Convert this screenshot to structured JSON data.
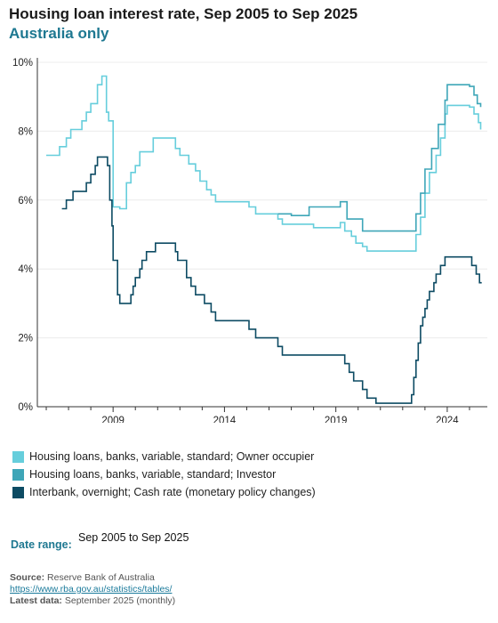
{
  "title": "Housing loan interest rate, Sep 2005 to Sep 2025",
  "subtitle": "Australia only",
  "colors": {
    "subtitle": "#1e7891",
    "owner_occupier": "#66cedc",
    "investor": "#3ea6b8",
    "cash_rate": "#0d4b63"
  },
  "legend": [
    {
      "label": "Housing loans, banks, variable, standard; Owner occupier",
      "color": "#66cedc"
    },
    {
      "label": "Housing loans, banks, variable, standard; Investor",
      "color": "#3ea6b8"
    },
    {
      "label": "Interbank, overnight; Cash rate (monetary policy changes)",
      "color": "#0d4b63"
    }
  ],
  "date_range": {
    "label": "Date range:",
    "value": "Sep 2005 to Sep 2025"
  },
  "footer": {
    "source_label": "Source:",
    "source_value": "Reserve Bank of Australia",
    "url": "https://www.rba.gov.au/statistics/tables/",
    "latest_label": "Latest data:",
    "latest_value": "September 2025 (monthly)"
  },
  "chart_data": {
    "type": "line",
    "ylim": [
      0,
      10
    ],
    "xlim": [
      2005.6,
      2025.8
    ],
    "y_ticks": [
      0,
      2,
      4,
      6,
      8,
      10
    ],
    "y_tick_labels": [
      "0%",
      "2%",
      "4%",
      "6%",
      "8%",
      "10%"
    ],
    "x_ticks": [
      2009,
      2014,
      2019,
      2024
    ],
    "x_tick_labels": [
      "2009",
      "2014",
      "2019",
      "2024"
    ],
    "grid": true,
    "series": [
      {
        "name": "Housing loans, banks, variable, standard; Owner occupier",
        "color": "#66cedc",
        "points": [
          [
            2006.0,
            7.3
          ],
          [
            2006.6,
            7.55
          ],
          [
            2006.9,
            7.8
          ],
          [
            2007.1,
            8.05
          ],
          [
            2007.6,
            8.3
          ],
          [
            2007.8,
            8.55
          ],
          [
            2008.0,
            8.8
          ],
          [
            2008.3,
            9.35
          ],
          [
            2008.5,
            9.6
          ],
          [
            2008.7,
            8.55
          ],
          [
            2008.8,
            8.3
          ],
          [
            2009.0,
            5.8
          ],
          [
            2009.3,
            5.75
          ],
          [
            2009.6,
            6.5
          ],
          [
            2009.8,
            6.8
          ],
          [
            2010.0,
            7.0
          ],
          [
            2010.2,
            7.4
          ],
          [
            2010.8,
            7.8
          ],
          [
            2011.8,
            7.5
          ],
          [
            2012.0,
            7.3
          ],
          [
            2012.4,
            7.05
          ],
          [
            2012.7,
            6.85
          ],
          [
            2012.9,
            6.55
          ],
          [
            2013.2,
            6.3
          ],
          [
            2013.4,
            6.15
          ],
          [
            2013.6,
            5.95
          ],
          [
            2015.1,
            5.8
          ],
          [
            2015.4,
            5.6
          ],
          [
            2016.4,
            5.45
          ],
          [
            2016.6,
            5.3
          ],
          [
            2018.0,
            5.2
          ],
          [
            2019.2,
            5.35
          ],
          [
            2019.4,
            5.1
          ],
          [
            2019.7,
            4.95
          ],
          [
            2019.9,
            4.75
          ],
          [
            2020.2,
            4.65
          ],
          [
            2020.4,
            4.52
          ],
          [
            2022.4,
            4.52
          ],
          [
            2022.6,
            5.0
          ],
          [
            2022.8,
            5.5
          ],
          [
            2023.0,
            6.2
          ],
          [
            2023.2,
            6.8
          ],
          [
            2023.5,
            7.3
          ],
          [
            2023.7,
            7.8
          ],
          [
            2023.9,
            8.5
          ],
          [
            2024.0,
            8.75
          ],
          [
            2025.0,
            8.7
          ],
          [
            2025.2,
            8.5
          ],
          [
            2025.4,
            8.25
          ],
          [
            2025.5,
            8.05
          ]
        ]
      },
      {
        "name": "Housing loans, banks, variable, standard; Investor",
        "color": "#3ea6b8",
        "points": [
          [
            2016.4,
            5.6
          ],
          [
            2017.0,
            5.55
          ],
          [
            2017.8,
            5.8
          ],
          [
            2019.2,
            5.95
          ],
          [
            2019.5,
            5.45
          ],
          [
            2020.2,
            5.1
          ],
          [
            2022.4,
            5.1
          ],
          [
            2022.6,
            5.6
          ],
          [
            2022.8,
            6.2
          ],
          [
            2023.0,
            6.9
          ],
          [
            2023.3,
            7.5
          ],
          [
            2023.6,
            8.2
          ],
          [
            2023.9,
            8.9
          ],
          [
            2024.0,
            9.35
          ],
          [
            2025.0,
            9.3
          ],
          [
            2025.2,
            9.05
          ],
          [
            2025.35,
            8.8
          ],
          [
            2025.5,
            8.7
          ]
        ]
      },
      {
        "name": "Interbank, overnight; Cash rate (monetary policy changes)",
        "color": "#0d4b63",
        "points": [
          [
            2006.7,
            5.75
          ],
          [
            2006.9,
            6.0
          ],
          [
            2007.2,
            6.25
          ],
          [
            2007.8,
            6.5
          ],
          [
            2008.0,
            6.75
          ],
          [
            2008.2,
            7.0
          ],
          [
            2008.3,
            7.25
          ],
          [
            2008.75,
            7.0
          ],
          [
            2008.85,
            6.0
          ],
          [
            2008.95,
            5.25
          ],
          [
            2009.0,
            4.25
          ],
          [
            2009.2,
            3.25
          ],
          [
            2009.3,
            3.0
          ],
          [
            2009.8,
            3.25
          ],
          [
            2009.9,
            3.5
          ],
          [
            2010.0,
            3.75
          ],
          [
            2010.2,
            4.0
          ],
          [
            2010.3,
            4.25
          ],
          [
            2010.5,
            4.5
          ],
          [
            2010.9,
            4.75
          ],
          [
            2011.8,
            4.5
          ],
          [
            2011.9,
            4.25
          ],
          [
            2012.3,
            3.75
          ],
          [
            2012.5,
            3.5
          ],
          [
            2012.7,
            3.25
          ],
          [
            2013.1,
            3.0
          ],
          [
            2013.4,
            2.75
          ],
          [
            2013.6,
            2.5
          ],
          [
            2015.1,
            2.25
          ],
          [
            2015.4,
            2.0
          ],
          [
            2016.4,
            1.75
          ],
          [
            2016.6,
            1.5
          ],
          [
            2019.4,
            1.25
          ],
          [
            2019.6,
            1.0
          ],
          [
            2019.8,
            0.75
          ],
          [
            2020.2,
            0.5
          ],
          [
            2020.4,
            0.25
          ],
          [
            2020.8,
            0.1
          ],
          [
            2022.4,
            0.35
          ],
          [
            2022.5,
            0.85
          ],
          [
            2022.6,
            1.35
          ],
          [
            2022.7,
            1.85
          ],
          [
            2022.8,
            2.35
          ],
          [
            2022.9,
            2.6
          ],
          [
            2023.0,
            2.85
          ],
          [
            2023.1,
            3.1
          ],
          [
            2023.2,
            3.35
          ],
          [
            2023.4,
            3.6
          ],
          [
            2023.5,
            3.85
          ],
          [
            2023.7,
            4.1
          ],
          [
            2023.9,
            4.35
          ],
          [
            2025.1,
            4.1
          ],
          [
            2025.3,
            3.85
          ],
          [
            2025.45,
            3.6
          ],
          [
            2025.55,
            3.6
          ]
        ]
      }
    ]
  }
}
